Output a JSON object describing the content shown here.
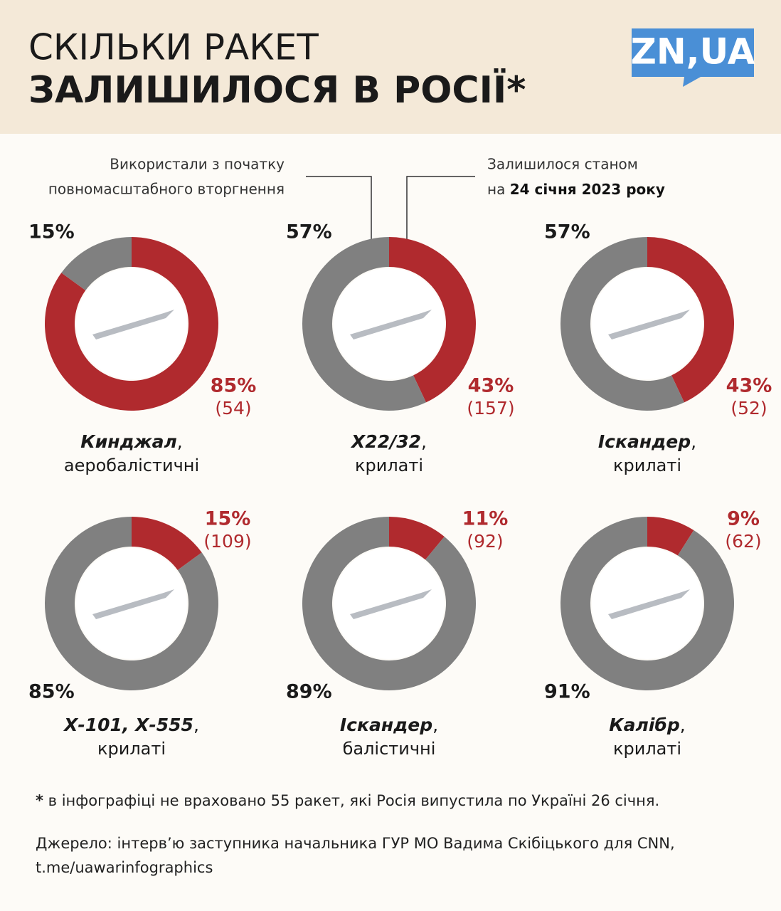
{
  "header": {
    "title_line1": "СКІЛЬКИ РАКЕТ",
    "title_line2": "ЗАЛИШИЛОСЯ В РОСІЇ*",
    "logo": "ZN,UA"
  },
  "legend": {
    "used": [
      "Використали з початку",
      "повномасштабного вторгнення"
    ],
    "remaining": [
      "Залишилося станом",
      "на ",
      "24 січня 2023 року"
    ]
  },
  "chart_data": [
    {
      "type": "pie",
      "donut": true,
      "title": "Кинджал",
      "title_punct": ",",
      "subtitle": "аеробалістичні",
      "colors": [
        "#808080",
        "#b02a2e"
      ],
      "values": [
        15,
        85
      ],
      "value_labels": [
        "15%",
        "85%"
      ],
      "remaining_count": 54,
      "remaining_count_label": "(54)"
    },
    {
      "type": "pie",
      "donut": true,
      "title": "Х22/32",
      "title_punct": ",",
      "subtitle": "крилаті",
      "colors": [
        "#808080",
        "#b02a2e"
      ],
      "values": [
        57,
        43
      ],
      "value_labels": [
        "57%",
        "43%"
      ],
      "remaining_count": 157,
      "remaining_count_label": "(157)"
    },
    {
      "type": "pie",
      "donut": true,
      "title": "Іскандер",
      "title_punct": ",",
      "subtitle": "крилаті",
      "colors": [
        "#808080",
        "#b02a2e"
      ],
      "values": [
        57,
        43
      ],
      "value_labels": [
        "57%",
        "43%"
      ],
      "remaining_count": 52,
      "remaining_count_label": "(52)"
    },
    {
      "type": "pie",
      "donut": true,
      "title": "Х-101, Х-555",
      "title_punct": ",",
      "subtitle": "крилаті",
      "colors": [
        "#808080",
        "#b02a2e"
      ],
      "values": [
        85,
        15
      ],
      "value_labels": [
        "85%",
        "15%"
      ],
      "remaining_count": 109,
      "remaining_count_label": "(109)"
    },
    {
      "type": "pie",
      "donut": true,
      "title": "Іскандер",
      "title_punct": ",",
      "subtitle": "балістичні",
      "colors": [
        "#808080",
        "#b02a2e"
      ],
      "values": [
        89,
        11
      ],
      "value_labels": [
        "89%",
        "11%"
      ],
      "remaining_count": 92,
      "remaining_count_label": "(92)"
    },
    {
      "type": "pie",
      "donut": true,
      "title": "Калібр",
      "title_punct": ",",
      "subtitle": "крилаті",
      "colors": [
        "#808080",
        "#b02a2e"
      ],
      "values": [
        91,
        9
      ],
      "value_labels": [
        "91%",
        "9%"
      ],
      "remaining_count": 62,
      "remaining_count_label": "(62)"
    }
  ],
  "footnote": {
    "mark": "*",
    "text": " в інфографіці не враховано 55 ракет, які Росія випустила по Україні 26 січня."
  },
  "source": [
    "Джерело: інтерв’ю заступника начальника ГУР МО Вадима Скібіцького для CNN,",
    "t.me/uawarinfographics"
  ]
}
